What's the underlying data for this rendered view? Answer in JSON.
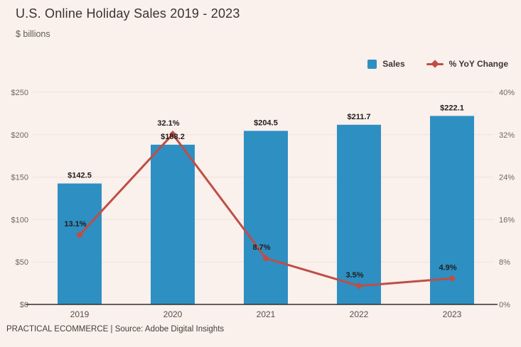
{
  "header": {
    "title": "U.S. Online Holiday Sales 2019 - 2023",
    "subtitle": "$ billions"
  },
  "legend": [
    {
      "label": "Sales",
      "marker": "square",
      "color": "#2e8fc2"
    },
    {
      "label": "% YoY Change",
      "marker": "line-diamond",
      "color": "#bf4e45"
    }
  ],
  "footer": {
    "text": "PRACTICAL ECOMMERCE | Source: Adobe Digital Insights"
  },
  "chart_data": {
    "type": "bar",
    "title": "U.S. Online Holiday Sales 2019 - 2023",
    "subtitle": "$ billions",
    "categories": [
      "2019",
      "2020",
      "2021",
      "2022",
      "2023"
    ],
    "series": [
      {
        "name": "Sales",
        "type": "bar",
        "axis": "left",
        "values": [
          142.5,
          188.2,
          204.5,
          211.7,
          222.1
        ],
        "labels": [
          "$142.5",
          "$188.2",
          "$204.5",
          "$211.7",
          "$222.1"
        ],
        "color": "#2e8fc2"
      },
      {
        "name": "% YoY Change",
        "type": "line",
        "axis": "right",
        "values": [
          13.1,
          32.1,
          8.7,
          3.5,
          4.9
        ],
        "labels": [
          "13.1%",
          "32.1%",
          "8.7%",
          "3.5%",
          "4.9%"
        ],
        "color": "#bf4e45"
      }
    ],
    "left_axis": {
      "min": 0,
      "max": 250,
      "ticks": [
        0,
        50,
        100,
        150,
        200,
        250
      ],
      "tick_labels": [
        "$0",
        "$50",
        "$100",
        "$150",
        "$200",
        "$250"
      ]
    },
    "right_axis": {
      "min": 0,
      "max": 40,
      "ticks": [
        0,
        8,
        16,
        24,
        32,
        40
      ],
      "tick_labels": [
        "0%",
        "8%",
        "16%",
        "24%",
        "32%",
        "40%"
      ]
    },
    "grid": true,
    "legend_position": "top-right"
  },
  "colors": {
    "background": "#faf0ec",
    "bar": "#2e8fc2",
    "line": "#bf4e45",
    "grid": "#eee3dc",
    "axis_line": "#332f2c",
    "tick_text": "#6e6862",
    "label_text": "#211d1a"
  }
}
